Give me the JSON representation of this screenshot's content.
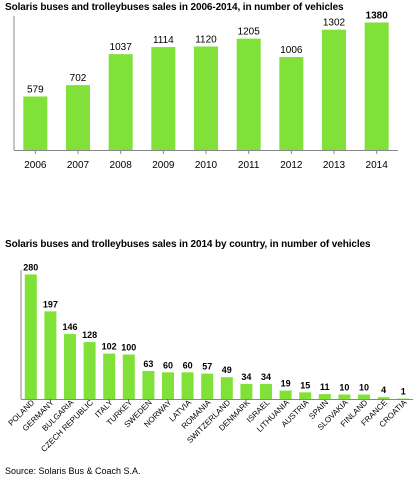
{
  "chart_data": [
    {
      "type": "bar",
      "title": "Solaris buses and trolleybuses sales in 2006-2014, in number of vehicles",
      "categories": [
        "2006",
        "2007",
        "2008",
        "2009",
        "2010",
        "2011",
        "2012",
        "2013",
        "2014"
      ],
      "values": [
        579,
        702,
        1037,
        1114,
        1120,
        1205,
        1006,
        1302,
        1380
      ],
      "highlighted_value_labels": [
        "1380"
      ],
      "ylim": [
        0,
        1450
      ],
      "grid": false,
      "legend": "none",
      "color": "#80e239"
    },
    {
      "type": "bar",
      "title": "Solaris buses and trolleybuses sales in 2014 by country, in number of vehicles",
      "categories": [
        "POLAND",
        "GERMANY",
        "BULGARIA",
        "CZECH REPUBLIC",
        "ITALY",
        "TURKEY",
        "SWEDEN",
        "NORWAY",
        "LATVIA",
        "ROMANIA",
        "SWITZERLAND",
        "DENMARK",
        "ISRAEL",
        "LITHUANIA",
        "AUSTRIA",
        "SPAIN",
        "SLOVAKIA",
        "FINLAND",
        "FRANCE",
        "CROATIA"
      ],
      "values": [
        280,
        197,
        146,
        128,
        102,
        100,
        63,
        60,
        60,
        57,
        49,
        34,
        34,
        19,
        15,
        11,
        10,
        10,
        4,
        1
      ],
      "ylim": [
        0,
        290
      ],
      "grid": false,
      "legend": "none",
      "color": "#80e239",
      "tick_label_rotation": "diagonal"
    }
  ],
  "footer": {
    "source": "Source: Solaris Bus & Coach S.A."
  }
}
